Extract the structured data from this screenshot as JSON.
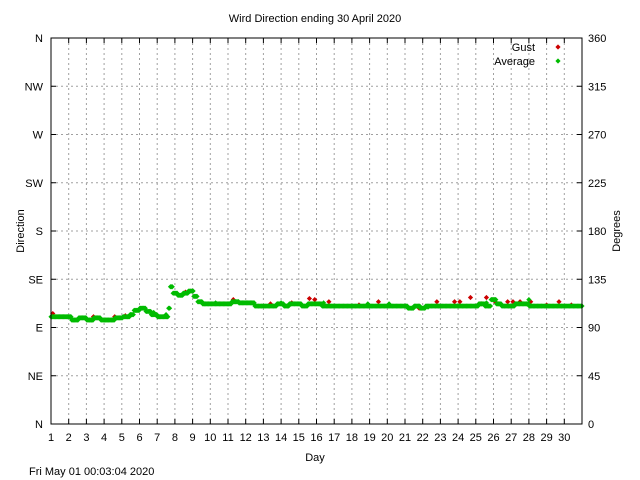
{
  "chart_data": {
    "type": "scatter",
    "title": "Wird Direction ending 30 April 2020",
    "xlabel": "Day",
    "ylabel": "Direction",
    "y2label": "Degrees",
    "footer": "Fri May 01 00:03:04 2020",
    "xlim": [
      1,
      31
    ],
    "ylim": [
      0,
      360
    ],
    "grid": true,
    "legend_position": "top-right",
    "x_ticks": [
      1,
      2,
      3,
      4,
      5,
      6,
      7,
      8,
      9,
      10,
      11,
      12,
      13,
      14,
      15,
      16,
      17,
      18,
      19,
      20,
      21,
      22,
      23,
      24,
      25,
      26,
      27,
      28,
      29,
      30
    ],
    "x_tick_labels": [
      "1",
      "2",
      "3",
      "4",
      "5",
      "6",
      "7",
      "8",
      "9",
      "10",
      "11",
      "12",
      "13",
      "14",
      "15",
      "16",
      "17",
      "18",
      "19",
      "20",
      "21",
      "22",
      "23",
      "24",
      "25",
      "26",
      "27",
      "28",
      "29",
      "30"
    ],
    "y_left_ticks": [
      {
        "value": 0,
        "label": "N"
      },
      {
        "value": 45,
        "label": "NE"
      },
      {
        "value": 90,
        "label": "E"
      },
      {
        "value": 135,
        "label": "SE"
      },
      {
        "value": 180,
        "label": "S"
      },
      {
        "value": 225,
        "label": "SW"
      },
      {
        "value": 270,
        "label": "W"
      },
      {
        "value": 315,
        "label": "NW"
      },
      {
        "value": 360,
        "label": "N"
      }
    ],
    "y_right_ticks": [
      {
        "value": 0,
        "label": "0"
      },
      {
        "value": 45,
        "label": "45"
      },
      {
        "value": 90,
        "label": "90"
      },
      {
        "value": 135,
        "label": "135"
      },
      {
        "value": 180,
        "label": "180"
      },
      {
        "value": 225,
        "label": "225"
      },
      {
        "value": 270,
        "label": "270"
      },
      {
        "value": 315,
        "label": "315"
      },
      {
        "value": 360,
        "label": "360"
      }
    ],
    "series": [
      {
        "name": "Gust",
        "color": "#cc0000",
        "points": [
          [
            1.1,
            103
          ],
          [
            3.4,
            100
          ],
          [
            4.6,
            100
          ],
          [
            5.2,
            101
          ],
          [
            8.6,
            123
          ],
          [
            11.3,
            116
          ],
          [
            13.4,
            112
          ],
          [
            14.6,
            113
          ],
          [
            15.6,
            117
          ],
          [
            15.9,
            116
          ],
          [
            16.7,
            114
          ],
          [
            18.4,
            111
          ],
          [
            19.5,
            114
          ],
          [
            21.8,
            108
          ],
          [
            22.8,
            114
          ],
          [
            23.8,
            114
          ],
          [
            24.1,
            114
          ],
          [
            24.7,
            118
          ],
          [
            25.3,
            112
          ],
          [
            25.6,
            118
          ],
          [
            26.1,
            114
          ],
          [
            26.8,
            114
          ],
          [
            27.1,
            114
          ],
          [
            27.5,
            114
          ],
          [
            28.1,
            114
          ],
          [
            29.0,
            111
          ],
          [
            29.7,
            114
          ],
          [
            30.4,
            111
          ]
        ]
      },
      {
        "name": "Average",
        "color": "#00bb00",
        "segments": [
          [
            1.0,
            100
          ],
          [
            1.5,
            100
          ],
          [
            2.0,
            100
          ],
          [
            2.3,
            97
          ],
          [
            2.8,
            99
          ],
          [
            3.2,
            97
          ],
          [
            3.6,
            99
          ],
          [
            4.0,
            97
          ],
          [
            4.4,
            97
          ],
          [
            4.8,
            99
          ],
          [
            5.3,
            100
          ],
          [
            5.6,
            102
          ],
          [
            5.8,
            106
          ],
          [
            6.2,
            108
          ],
          [
            6.5,
            105
          ],
          [
            6.8,
            102
          ],
          [
            7.2,
            100
          ],
          [
            7.6,
            100
          ],
          [
            7.7,
            108
          ],
          [
            7.8,
            128
          ],
          [
            8.0,
            122
          ],
          [
            8.3,
            120
          ],
          [
            8.6,
            122
          ],
          [
            8.9,
            124
          ],
          [
            9.2,
            119
          ],
          [
            9.4,
            114
          ],
          [
            9.7,
            112
          ],
          [
            10.0,
            112
          ],
          [
            10.5,
            112
          ],
          [
            11.0,
            112
          ],
          [
            11.4,
            114
          ],
          [
            11.8,
            113
          ],
          [
            12.3,
            113
          ],
          [
            12.7,
            110
          ],
          [
            13.0,
            110
          ],
          [
            13.5,
            110
          ],
          [
            14.0,
            112
          ],
          [
            14.3,
            110
          ],
          [
            14.6,
            112
          ],
          [
            15.0,
            112
          ],
          [
            15.3,
            110
          ],
          [
            15.7,
            112
          ],
          [
            16.1,
            112
          ],
          [
            16.5,
            110
          ],
          [
            17.0,
            110
          ],
          [
            17.5,
            110
          ],
          [
            18.0,
            110
          ],
          [
            18.5,
            110
          ],
          [
            19.0,
            110
          ],
          [
            19.5,
            110
          ],
          [
            20.0,
            110
          ],
          [
            20.5,
            110
          ],
          [
            21.0,
            110
          ],
          [
            21.3,
            108
          ],
          [
            21.7,
            110
          ],
          [
            22.0,
            108
          ],
          [
            22.3,
            110
          ],
          [
            22.7,
            110
          ],
          [
            23.0,
            110
          ],
          [
            23.5,
            110
          ],
          [
            24.0,
            110
          ],
          [
            24.5,
            110
          ],
          [
            25.0,
            110
          ],
          [
            25.3,
            112
          ],
          [
            25.7,
            110
          ],
          [
            26.0,
            116
          ],
          [
            26.3,
            112
          ],
          [
            26.6,
            110
          ],
          [
            27.0,
            110
          ],
          [
            27.4,
            112
          ],
          [
            27.8,
            112
          ],
          [
            28.2,
            110
          ],
          [
            28.6,
            110
          ],
          [
            29.0,
            110
          ],
          [
            29.5,
            110
          ],
          [
            30.0,
            110
          ],
          [
            30.5,
            110
          ],
          [
            31.0,
            110
          ]
        ],
        "isolated_points": [
          [
            3.3,
            97
          ],
          [
            4.1,
            97
          ],
          [
            6.8,
            104
          ],
          [
            7.5,
            102
          ],
          [
            10.3,
            113
          ],
          [
            11.6,
            114
          ],
          [
            14.0,
            113
          ],
          [
            16.4,
            113
          ],
          [
            18.9,
            112
          ],
          [
            20.1,
            112
          ],
          [
            22.3,
            109
          ],
          [
            25.6,
            113
          ],
          [
            28.0,
            116
          ]
        ]
      }
    ]
  }
}
